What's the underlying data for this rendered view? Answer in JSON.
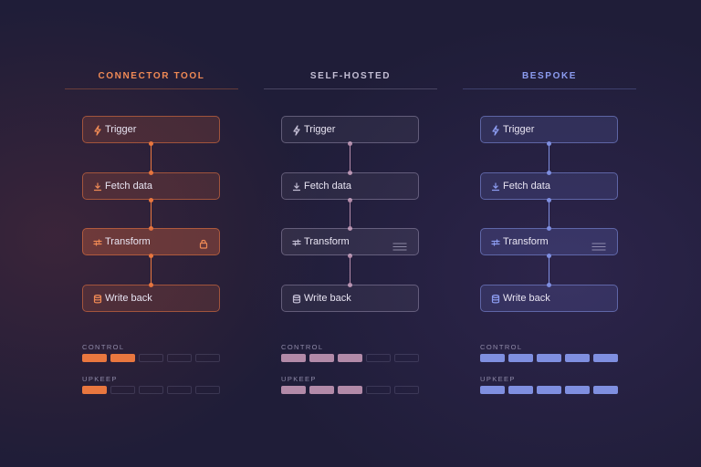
{
  "columns": [
    {
      "title": "CONNECTOR TOOL",
      "accent": "#e9773f",
      "steps": [
        {
          "label": "Trigger",
          "icon": "bolt-icon"
        },
        {
          "label": "Fetch data",
          "icon": "download-icon"
        },
        {
          "label": "Transform",
          "icon": "sliders-icon",
          "trailing": "lock-icon"
        },
        {
          "label": "Write back",
          "icon": "database-icon"
        }
      ],
      "meters": [
        {
          "label": "CONTROL",
          "level": 2,
          "max": 5
        },
        {
          "label": "UPKEEP",
          "level": 1,
          "max": 5
        }
      ]
    },
    {
      "title": "SELF-HOSTED",
      "accent": "#b28aa8",
      "steps": [
        {
          "label": "Trigger",
          "icon": "bolt-icon"
        },
        {
          "label": "Fetch data",
          "icon": "download-icon"
        },
        {
          "label": "Transform",
          "icon": "sliders-icon",
          "trailing": "menu-icon"
        },
        {
          "label": "Write back",
          "icon": "database-icon"
        }
      ],
      "meters": [
        {
          "label": "CONTROL",
          "level": 3,
          "max": 5
        },
        {
          "label": "UPKEEP",
          "level": 3,
          "max": 5
        }
      ]
    },
    {
      "title": "BESPOKE",
      "accent": "#7f8fe0",
      "steps": [
        {
          "label": "Trigger",
          "icon": "bolt-icon"
        },
        {
          "label": "Fetch data",
          "icon": "download-icon"
        },
        {
          "label": "Transform",
          "icon": "sliders-icon",
          "trailing": "menu-icon"
        },
        {
          "label": "Write back",
          "icon": "database-icon"
        }
      ],
      "meters": [
        {
          "label": "CONTROL",
          "level": 5,
          "max": 5
        },
        {
          "label": "UPKEEP",
          "level": 5,
          "max": 5
        }
      ]
    }
  ]
}
